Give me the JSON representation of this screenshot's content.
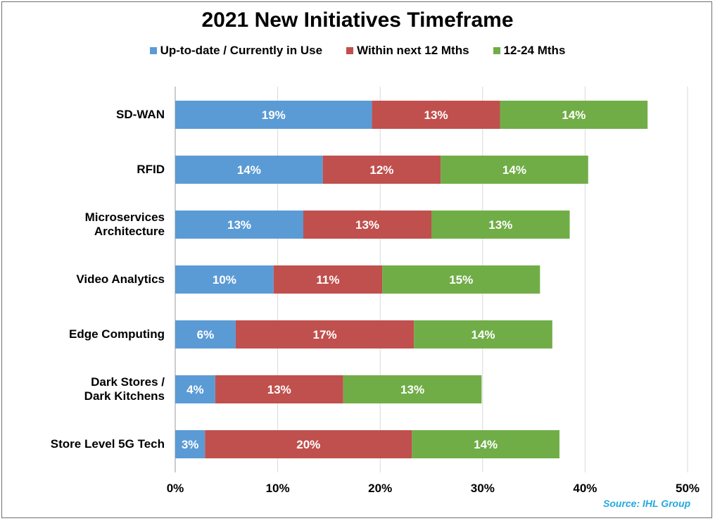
{
  "chart_data": {
    "type": "bar",
    "orientation": "horizontal",
    "stacked": true,
    "title": "2021 New Initiatives Timeframe",
    "categories": [
      "SD-WAN",
      "RFID",
      "Microservices\nArchitecture",
      "Video Analytics",
      "Edge Computing",
      "Dark Stores /\nDark Kitchens",
      "Store Level 5G Tech"
    ],
    "series": [
      {
        "name": "Up-to-date / Currently in Use",
        "color": "#5b9bd5",
        "values": [
          19.2,
          14.4,
          12.5,
          9.6,
          5.9,
          3.9,
          2.9
        ],
        "labels": [
          "19%",
          "14%",
          "13%",
          "10%",
          "6%",
          "4%",
          "3%"
        ]
      },
      {
        "name": "Within next 12 Mths",
        "color": "#c0504d",
        "values": [
          12.5,
          11.5,
          12.5,
          10.6,
          17.4,
          12.5,
          20.2
        ],
        "labels": [
          "13%",
          "12%",
          "13%",
          "11%",
          "17%",
          "13%",
          "20%"
        ]
      },
      {
        "name": "12-24 Mths",
        "color": "#70ad47",
        "values": [
          14.4,
          14.4,
          13.5,
          15.4,
          13.5,
          13.5,
          14.4
        ],
        "labels": [
          "14%",
          "14%",
          "13%",
          "15%",
          "14%",
          "13%",
          "14%"
        ]
      }
    ],
    "xlim": [
      0,
      50
    ],
    "xticks": [
      0,
      10,
      20,
      30,
      40,
      50
    ],
    "xtick_labels": [
      "0%",
      "10%",
      "20%",
      "30%",
      "40%",
      "50%"
    ],
    "grid": true,
    "legend_position": "top"
  },
  "source": "Source: IHL Group"
}
